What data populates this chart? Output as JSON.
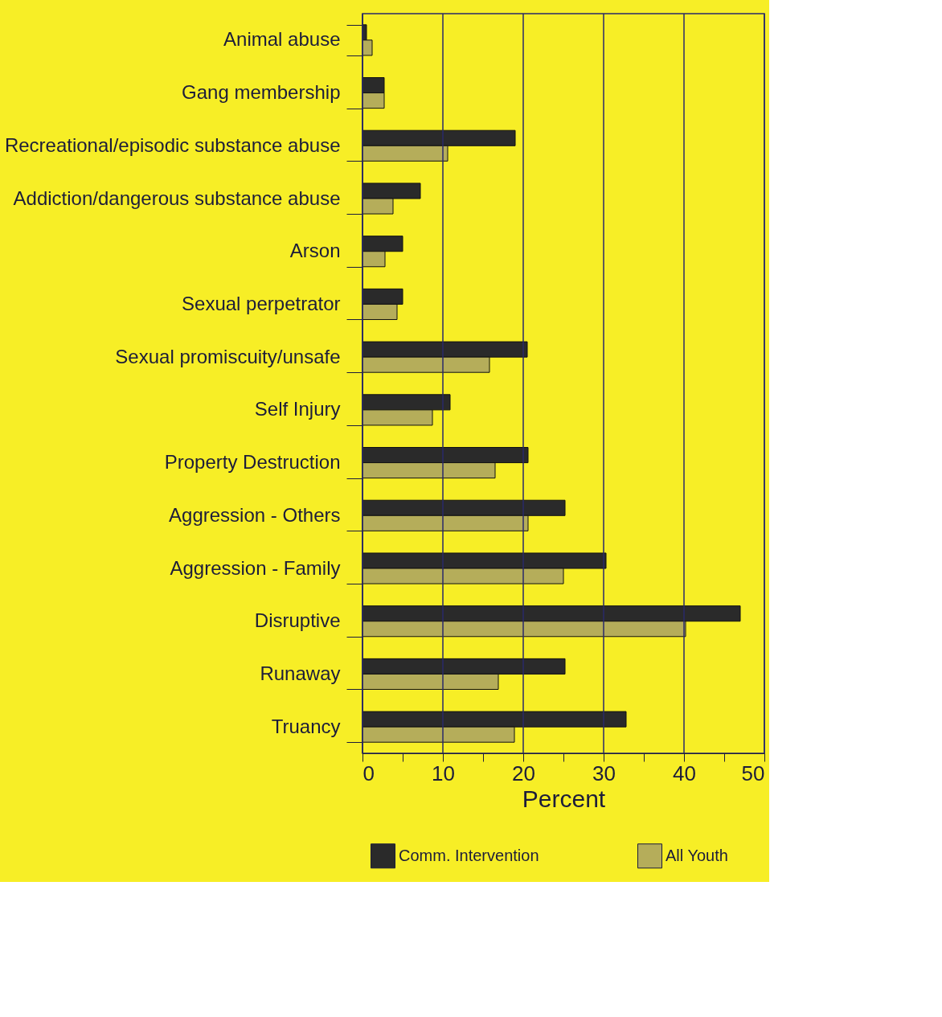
{
  "chart_data": {
    "type": "bar",
    "orientation": "horizontal",
    "xlabel": "Percent",
    "categories": [
      "Animal abuse",
      "Gang membership",
      "Recreational/episodic substance abuse",
      "Addiction/dangerous substance abuse",
      "Arson",
      "Sexual perpetrator",
      "Sexual promiscuity/unsafe",
      "Self Injury",
      "Property Destruction",
      "Aggression - Others",
      "Aggression - Family",
      "Disruptive",
      "Runaway",
      "Truancy"
    ],
    "series": [
      {
        "name": "Comm. Intervention",
        "color": "#2a2a2a",
        "values": [
          0.5,
          2.7,
          19,
          7.2,
          5,
          5,
          20.5,
          10.9,
          20.6,
          25.2,
          30.3,
          47,
          25.2,
          32.8
        ]
      },
      {
        "name": "All Youth",
        "color": "#b5ad5a",
        "values": [
          1.2,
          2.7,
          10.6,
          3.8,
          2.8,
          4.3,
          15.8,
          8.7,
          16.5,
          20.6,
          25,
          40.2,
          16.9,
          18.9
        ]
      }
    ],
    "xlim": [
      0,
      50
    ],
    "xticks": [
      0,
      {
        "value": 5,
        "label": null
      },
      10,
      {
        "value": 15,
        "label": null
      },
      20,
      {
        "value": 25,
        "label": null
      },
      30,
      {
        "value": 35,
        "label": null
      },
      40,
      {
        "value": 45,
        "label": null
      },
      50
    ],
    "grid": "x",
    "legend": "bottom"
  }
}
